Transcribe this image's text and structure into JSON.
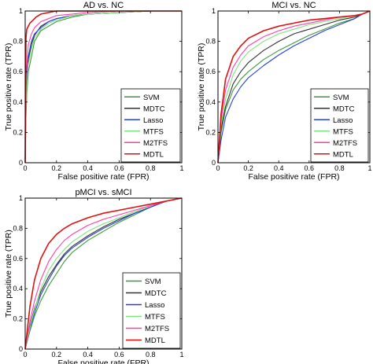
{
  "figure": {
    "legend_labels": [
      "SVM",
      "MDTC",
      "Lasso",
      "MTFS",
      "M2TFS",
      "MDTL"
    ],
    "series_colors": {
      "SVM": "#3a9a3a",
      "MDTC": "#333333",
      "Lasso": "#2b3fd6",
      "MTFS": "#7de37d",
      "M2TFS": "#ff3ca8",
      "MDTL": "#e01010"
    }
  },
  "chart_data": [
    {
      "type": "line",
      "title": "AD vs. NC",
      "xlabel": "False positive rate (FPR)",
      "ylabel": "True positive rate (TPR)",
      "xlim": [
        0,
        1
      ],
      "ylim": [
        0,
        1
      ],
      "xticks": [
        "0",
        "0.2",
        "0.4",
        "0.6",
        "0.8",
        "1"
      ],
      "yticks": [
        "0",
        "0.2",
        "0.4",
        "0.6",
        "0.8",
        "1"
      ],
      "legend_position": "lower-right",
      "grid": false,
      "series": [
        {
          "name": "SVM",
          "x": [
            0,
            0.005,
            0.01,
            0.02,
            0.04,
            0.06,
            0.1,
            0.15,
            0.2,
            0.3,
            0.4,
            0.6,
            0.8,
            1
          ],
          "y": [
            0,
            0.3,
            0.45,
            0.6,
            0.7,
            0.8,
            0.87,
            0.9,
            0.93,
            0.96,
            0.98,
            0.99,
            1,
            1
          ]
        },
        {
          "name": "MDTC",
          "x": [
            0,
            0.005,
            0.01,
            0.02,
            0.04,
            0.06,
            0.1,
            0.15,
            0.2,
            0.3,
            0.4,
            0.6,
            0.8,
            1
          ],
          "y": [
            0,
            0.4,
            0.55,
            0.68,
            0.78,
            0.84,
            0.9,
            0.93,
            0.95,
            0.97,
            0.98,
            0.99,
            1,
            1
          ]
        },
        {
          "name": "Lasso",
          "x": [
            0,
            0.005,
            0.01,
            0.02,
            0.04,
            0.06,
            0.1,
            0.15,
            0.2,
            0.3,
            0.4,
            0.6,
            0.8,
            1
          ],
          "y": [
            0,
            0.42,
            0.57,
            0.7,
            0.8,
            0.85,
            0.89,
            0.93,
            0.95,
            0.97,
            0.98,
            0.99,
            1,
            1
          ]
        },
        {
          "name": "MTFS",
          "x": [
            0,
            0.005,
            0.01,
            0.02,
            0.04,
            0.06,
            0.1,
            0.15,
            0.2,
            0.3,
            0.4,
            0.6,
            0.8,
            1
          ],
          "y": [
            0,
            0.35,
            0.5,
            0.65,
            0.75,
            0.82,
            0.88,
            0.92,
            0.94,
            0.97,
            0.98,
            0.99,
            1,
            1
          ]
        },
        {
          "name": "M2TFS",
          "x": [
            0,
            0.005,
            0.01,
            0.02,
            0.04,
            0.06,
            0.1,
            0.15,
            0.2,
            0.3,
            0.4,
            0.6,
            0.8,
            1
          ],
          "y": [
            0,
            0.5,
            0.63,
            0.78,
            0.85,
            0.89,
            0.93,
            0.95,
            0.97,
            0.98,
            0.99,
            1,
            1,
            1
          ]
        },
        {
          "name": "MDTL",
          "x": [
            0,
            0.005,
            0.01,
            0.02,
            0.03,
            0.05,
            0.07,
            0.1,
            0.15,
            0.2,
            0.4,
            0.6,
            1
          ],
          "y": [
            0,
            0.82,
            0.88,
            0.9,
            0.92,
            0.94,
            0.96,
            0.98,
            0.99,
            1,
            1,
            1,
            1
          ]
        }
      ]
    },
    {
      "type": "line",
      "title": "MCI vs. NC",
      "xlabel": "False positive rate (FPR)",
      "ylabel": "True positive rate (TPR)",
      "xlim": [
        0,
        1
      ],
      "ylim": [
        0,
        1
      ],
      "xticks": [
        "0",
        "0.2",
        "0.4",
        "0.6",
        "0.8",
        "1"
      ],
      "yticks": [
        "0",
        "0.2",
        "0.4",
        "0.6",
        "0.8",
        "1"
      ],
      "legend_position": "lower-right",
      "grid": false,
      "series": [
        {
          "name": "SVM",
          "x": [
            0,
            0.02,
            0.05,
            0.1,
            0.15,
            0.2,
            0.3,
            0.4,
            0.5,
            0.6,
            0.7,
            0.8,
            0.9,
            0.95,
            1
          ],
          "y": [
            0,
            0.2,
            0.35,
            0.48,
            0.55,
            0.6,
            0.68,
            0.74,
            0.79,
            0.84,
            0.88,
            0.92,
            0.95,
            0.98,
            1
          ]
        },
        {
          "name": "MDTC",
          "x": [
            0,
            0.02,
            0.05,
            0.1,
            0.15,
            0.2,
            0.3,
            0.4,
            0.5,
            0.6,
            0.7,
            0.8,
            0.9,
            0.95,
            1
          ],
          "y": [
            0,
            0.22,
            0.37,
            0.52,
            0.6,
            0.66,
            0.74,
            0.8,
            0.85,
            0.88,
            0.91,
            0.94,
            0.96,
            0.98,
            1
          ]
        },
        {
          "name": "Lasso",
          "x": [
            0,
            0.02,
            0.05,
            0.1,
            0.15,
            0.2,
            0.3,
            0.4,
            0.5,
            0.6,
            0.7,
            0.8,
            0.9,
            0.95,
            1
          ],
          "y": [
            0,
            0.15,
            0.3,
            0.42,
            0.5,
            0.56,
            0.64,
            0.71,
            0.77,
            0.82,
            0.87,
            0.91,
            0.95,
            0.98,
            1
          ]
        },
        {
          "name": "MTFS",
          "x": [
            0,
            0.02,
            0.05,
            0.1,
            0.15,
            0.2,
            0.3,
            0.4,
            0.5,
            0.6,
            0.7,
            0.8,
            0.9,
            0.95,
            1
          ],
          "y": [
            0,
            0.25,
            0.42,
            0.58,
            0.67,
            0.73,
            0.8,
            0.85,
            0.88,
            0.91,
            0.93,
            0.95,
            0.97,
            0.98,
            1
          ]
        },
        {
          "name": "M2TFS",
          "x": [
            0,
            0.02,
            0.05,
            0.1,
            0.15,
            0.2,
            0.3,
            0.4,
            0.5,
            0.6,
            0.7,
            0.8,
            0.9,
            0.95,
            1
          ],
          "y": [
            0,
            0.28,
            0.48,
            0.63,
            0.71,
            0.77,
            0.83,
            0.87,
            0.9,
            0.92,
            0.94,
            0.96,
            0.97,
            0.98,
            1
          ]
        },
        {
          "name": "MDTL",
          "x": [
            0,
            0.02,
            0.05,
            0.1,
            0.15,
            0.2,
            0.3,
            0.4,
            0.5,
            0.6,
            0.7,
            0.8,
            0.9,
            0.95,
            1
          ],
          "y": [
            0,
            0.32,
            0.55,
            0.7,
            0.77,
            0.82,
            0.87,
            0.9,
            0.92,
            0.94,
            0.95,
            0.96,
            0.97,
            0.98,
            1
          ]
        }
      ]
    },
    {
      "type": "line",
      "title": "pMCI vs. sMCI",
      "xlabel": "False positive rate (FPR)",
      "ylabel": "True positive rate (TPR)",
      "xlim": [
        0,
        1
      ],
      "ylim": [
        0,
        1
      ],
      "xticks": [
        "0",
        "0.2",
        "0.4",
        "0.6",
        "0.8",
        "1"
      ],
      "yticks": [
        "0",
        "0.2",
        "0.4",
        "0.6",
        "0.8",
        "1"
      ],
      "legend_position": "lower-right",
      "grid": false,
      "series": [
        {
          "name": "SVM",
          "x": [
            0,
            0.03,
            0.06,
            0.1,
            0.15,
            0.2,
            0.25,
            0.3,
            0.4,
            0.5,
            0.6,
            0.7,
            0.8,
            0.9,
            1
          ],
          "y": [
            0,
            0.12,
            0.22,
            0.32,
            0.42,
            0.5,
            0.58,
            0.64,
            0.72,
            0.78,
            0.84,
            0.89,
            0.94,
            0.98,
            1
          ]
        },
        {
          "name": "MDTC",
          "x": [
            0,
            0.03,
            0.06,
            0.1,
            0.15,
            0.2,
            0.25,
            0.3,
            0.4,
            0.5,
            0.6,
            0.7,
            0.8,
            0.9,
            1
          ],
          "y": [
            0,
            0.15,
            0.27,
            0.38,
            0.48,
            0.56,
            0.63,
            0.68,
            0.75,
            0.81,
            0.86,
            0.9,
            0.94,
            0.98,
            1
          ]
        },
        {
          "name": "Lasso",
          "x": [
            0,
            0.03,
            0.06,
            0.1,
            0.15,
            0.2,
            0.25,
            0.3,
            0.4,
            0.5,
            0.6,
            0.7,
            0.8,
            0.9,
            1
          ],
          "y": [
            0,
            0.13,
            0.24,
            0.36,
            0.46,
            0.55,
            0.62,
            0.67,
            0.74,
            0.8,
            0.85,
            0.9,
            0.94,
            0.98,
            1
          ]
        },
        {
          "name": "MTFS",
          "x": [
            0,
            0.03,
            0.06,
            0.1,
            0.15,
            0.2,
            0.25,
            0.3,
            0.4,
            0.5,
            0.6,
            0.7,
            0.8,
            0.9,
            1
          ],
          "y": [
            0,
            0.14,
            0.26,
            0.4,
            0.52,
            0.6,
            0.66,
            0.71,
            0.78,
            0.83,
            0.87,
            0.91,
            0.95,
            0.98,
            1
          ]
        },
        {
          "name": "M2TFS",
          "x": [
            0,
            0.03,
            0.06,
            0.1,
            0.15,
            0.2,
            0.25,
            0.3,
            0.4,
            0.5,
            0.6,
            0.7,
            0.8,
            0.9,
            1
          ],
          "y": [
            0,
            0.18,
            0.32,
            0.46,
            0.58,
            0.66,
            0.72,
            0.76,
            0.82,
            0.86,
            0.89,
            0.92,
            0.95,
            0.98,
            1
          ]
        },
        {
          "name": "MDTL",
          "x": [
            0,
            0.03,
            0.06,
            0.1,
            0.15,
            0.2,
            0.25,
            0.3,
            0.4,
            0.5,
            0.6,
            0.7,
            0.8,
            0.9,
            1
          ],
          "y": [
            0,
            0.28,
            0.46,
            0.6,
            0.7,
            0.76,
            0.8,
            0.83,
            0.87,
            0.9,
            0.92,
            0.94,
            0.96,
            0.98,
            1
          ]
        }
      ]
    }
  ]
}
